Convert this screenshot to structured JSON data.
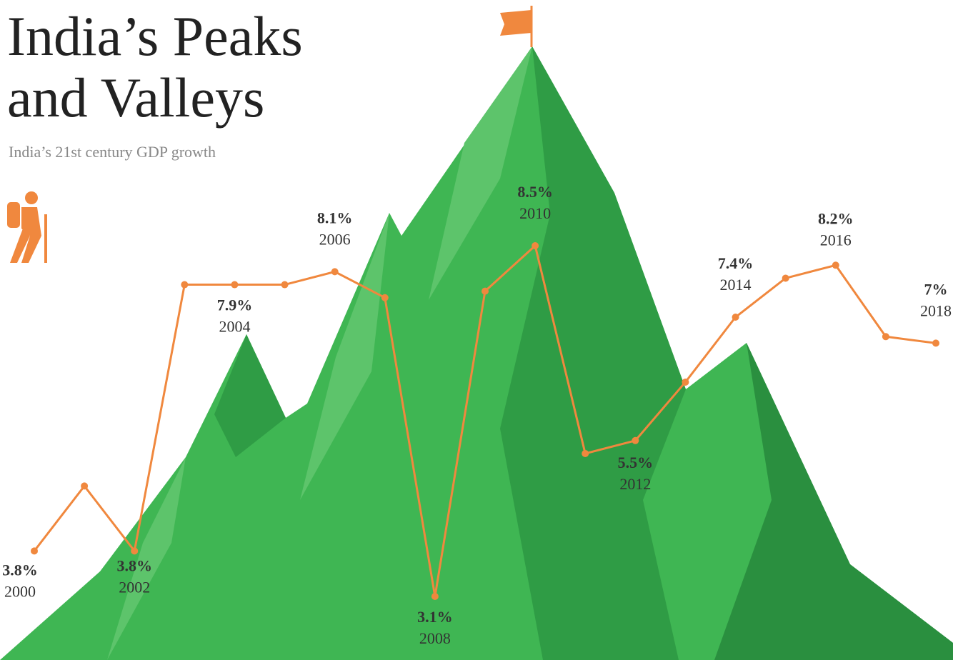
{
  "chart_data": {
    "type": "line",
    "title": "India’s Peaks and Valleys",
    "subtitle": "India’s 21st century GDP growth",
    "categories": [
      "2000",
      null,
      "2002",
      null,
      "2004",
      null,
      "2006",
      null,
      "2008",
      null,
      "2010",
      null,
      "2012",
      null,
      "2014",
      null,
      "2016",
      null,
      "2018"
    ],
    "values": [
      3.8,
      4.8,
      3.8,
      7.9,
      7.9,
      7.9,
      8.1,
      7.7,
      3.1,
      7.8,
      8.5,
      5.3,
      5.5,
      6.4,
      7.4,
      8.0,
      8.2,
      7.1,
      7
    ],
    "value_labels": [
      "3.8%",
      null,
      "3.8%",
      null,
      "7.9%",
      null,
      "8.1%",
      null,
      "3.1%",
      null,
      "8.5%",
      null,
      "5.5%",
      null,
      "7.4%",
      null,
      "8.2%",
      null,
      "7%"
    ],
    "color": "#f0883e"
  }
}
